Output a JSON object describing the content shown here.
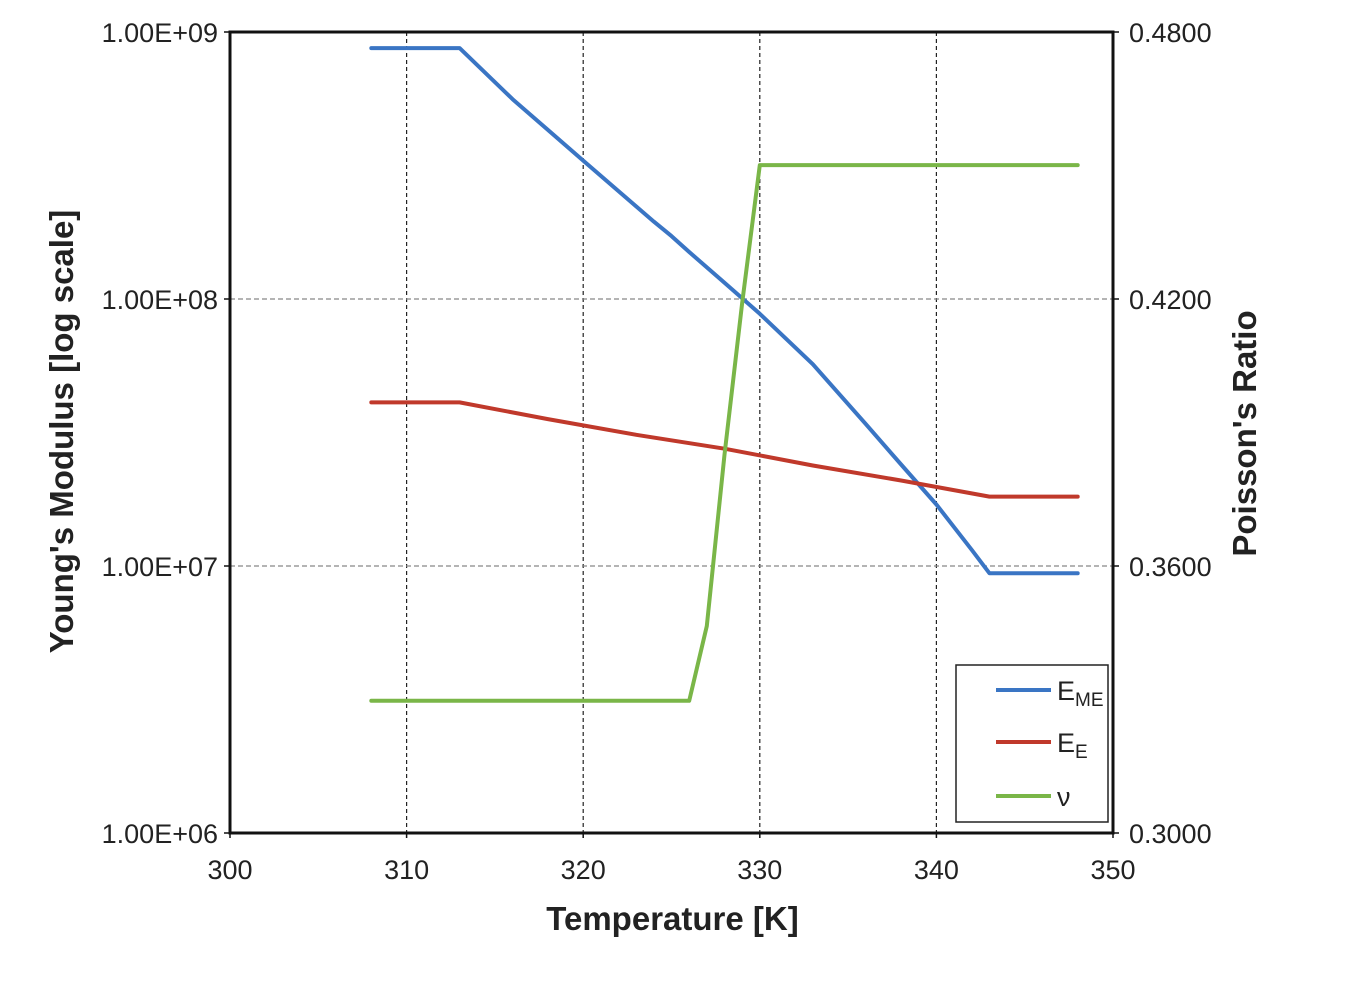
{
  "chart_data": {
    "type": "line",
    "title": "",
    "xlabel": "Temperature [K]",
    "ylabel_left": "Young's Modulus [log  scale]",
    "ylabel_right": "Poisson's Ratio",
    "xlim": [
      300,
      350
    ],
    "x_ticks": [
      300,
      310,
      320,
      330,
      340,
      350
    ],
    "x_tick_labels": [
      "300",
      "310",
      "320",
      "330",
      "340",
      "350"
    ],
    "ylim_left": [
      1000000,
      1000000000
    ],
    "y_left_scale": "log",
    "y_left_ticks": [
      1000000,
      10000000,
      100000000,
      1000000000
    ],
    "y_left_tick_labels": [
      "1.00E+06",
      "1.00E+07",
      "1.00E+08",
      "1.00E+09"
    ],
    "ylim_right": [
      0.3,
      0.48
    ],
    "y_right_ticks": [
      0.3,
      0.36,
      0.42,
      0.48
    ],
    "y_right_tick_labels": [
      "0.3000",
      "0.3600",
      "0.4200",
      "0.4800"
    ],
    "grid": true,
    "legend_position": "bottom-right",
    "series": [
      {
        "name": "E",
        "name_sub": "ME",
        "axis": "left",
        "color": "#3a75c4",
        "x": [
          308,
          313,
          316,
          320,
          324,
          325,
          326,
          328,
          330,
          333,
          336,
          338,
          340,
          342,
          343,
          348
        ],
        "y": [
          870000000,
          870000000,
          560000000,
          330000000,
          195000000,
          172000000,
          150000000,
          115000000,
          88000000,
          57000000,
          34000000,
          24000000,
          17000000,
          11500000,
          9400000,
          9400000
        ]
      },
      {
        "name": "E",
        "name_sub": "E",
        "axis": "left",
        "color": "#c0392b",
        "x": [
          308,
          313,
          318,
          323,
          328,
          333,
          338,
          343,
          348
        ],
        "y": [
          41000000,
          41000000,
          35500000,
          31000000,
          27500000,
          23800000,
          20900000,
          18200000,
          18200000
        ]
      },
      {
        "name": "ν",
        "name_sub": "",
        "axis": "right",
        "color": "#7ab648",
        "x": [
          308,
          326,
          327,
          328,
          329,
          330,
          348
        ],
        "y": [
          0.3297,
          0.3297,
          0.3465,
          0.385,
          0.419,
          0.4501,
          0.4501
        ]
      }
    ]
  }
}
